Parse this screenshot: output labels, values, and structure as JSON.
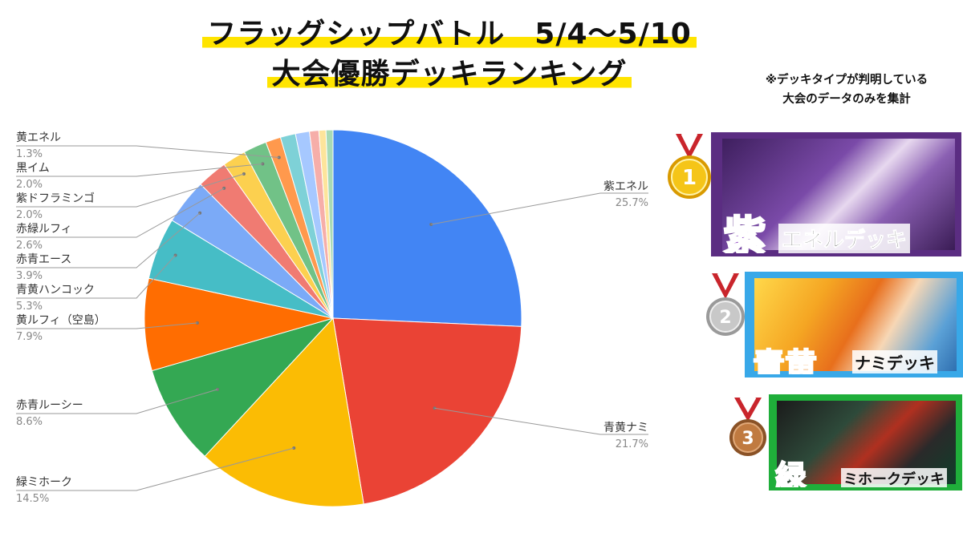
{
  "title": {
    "line1": "フラッグシップバトル　5/4〜5/10",
    "line2": "大会優勝デッキランキング"
  },
  "note": {
    "line1": "※デッキタイプが判明している",
    "line2": "大会のデータのみを集計"
  },
  "chart_data": {
    "type": "pie",
    "slices": [
      {
        "label": "紫エネル",
        "value": 25.7,
        "display": "25.7%",
        "color": "#4285f4"
      },
      {
        "label": "青黄ナミ",
        "value": 21.7,
        "display": "21.7%",
        "color": "#ea4335"
      },
      {
        "label": "緑ミホーク",
        "value": 14.5,
        "display": "14.5%",
        "color": "#fbbc04"
      },
      {
        "label": "赤青ルーシー",
        "value": 8.6,
        "display": "8.6%",
        "color": "#34a853"
      },
      {
        "label": "黄ルフィ（空島）",
        "value": 7.9,
        "display": "7.9%",
        "color": "#ff6d01"
      },
      {
        "label": "青黄ハンコック",
        "value": 5.3,
        "display": "5.3%",
        "color": "#46bdc6"
      },
      {
        "label": "赤青エース",
        "value": 3.9,
        "display": "3.9%",
        "color": "#7baaf7"
      },
      {
        "label": "赤緑ルフィ",
        "value": 2.6,
        "display": "2.6%",
        "color": "#f07b72"
      },
      {
        "label": "紫ドフラミンゴ",
        "value": 2.0,
        "display": "2.0%",
        "color": "#fcd04f"
      },
      {
        "label": "黒イム",
        "value": 2.0,
        "display": "2.0%",
        "color": "#71c287"
      },
      {
        "label": "黄エネル",
        "value": 1.3,
        "display": "1.3%",
        "color": "#ff994d"
      },
      {
        "label": "",
        "value": 1.3,
        "color": "#7ed1d7"
      },
      {
        "label": "",
        "value": 1.2,
        "color": "#a6c8ff"
      },
      {
        "label": "",
        "value": 0.8,
        "color": "#f6aea9"
      },
      {
        "label": "",
        "value": 0.6,
        "color": "#fde49b"
      },
      {
        "label": "",
        "value": 0.6,
        "color": "#a8dab5"
      }
    ],
    "legend": "none"
  },
  "ranking": [
    {
      "rank": "1",
      "color_label": "紫",
      "deck_label": "エネルデッキ",
      "medal_color": "#f2b705",
      "card_color": "#5b2d82"
    },
    {
      "rank": "2",
      "color_label": "青黄",
      "deck_label": "ナミデッキ",
      "medal_color": "#b9b9b9",
      "card_color": "#38a8e8"
    },
    {
      "rank": "3",
      "color_label": "緑",
      "deck_label": "ミホークデッキ",
      "medal_color": "#b3703a",
      "card_color": "#1fae3a"
    }
  ]
}
